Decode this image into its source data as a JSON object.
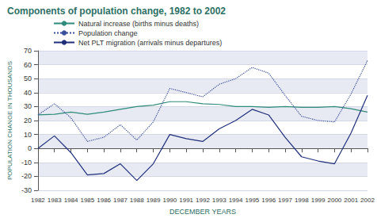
{
  "chart_data": {
    "type": "line",
    "title": "Components of population change, 1982 to 2002",
    "x_label": "DECEMBER YEARS",
    "y_label": "POPULATION CHANGE IN THOUSANDS",
    "categories": [
      "1982",
      "1983",
      "1984",
      "1985",
      "1986",
      "1987",
      "1988",
      "1989",
      "1990",
      "1991",
      "1992",
      "1993",
      "1994",
      "1995",
      "1996",
      "1997",
      "1998",
      "1999",
      "2000",
      "2001",
      "2002"
    ],
    "series": [
      {
        "name": "Natural increase (births minus deaths)",
        "color": "#2e8b7a",
        "line_style": "solid",
        "marker": "none",
        "values": [
          24,
          24.5,
          26,
          24.5,
          26,
          28,
          30,
          31,
          33.5,
          33.5,
          32,
          31.5,
          30,
          30,
          29.5,
          30,
          29.5,
          29.5,
          30,
          28.5,
          26
        ]
      },
      {
        "name": "Population change",
        "color": "#3a4f9a",
        "line_style": "dotted",
        "marker": "none",
        "values": [
          24,
          32,
          22,
          5,
          8,
          17,
          6,
          19,
          43,
          40,
          37,
          46,
          50,
          58,
          54,
          38,
          23,
          20,
          19,
          39,
          63
        ]
      },
      {
        "name": "Net PLT migration (arrivals minus departures)",
        "color": "#1f2f7a",
        "line_style": "solid",
        "marker": "none",
        "values": [
          0,
          9,
          -3,
          -19,
          -18,
          -11,
          -23,
          -11,
          10,
          7,
          5,
          14,
          20,
          28,
          24,
          8,
          -6,
          -9,
          -11,
          11,
          38
        ]
      }
    ],
    "ylim": [
      -30,
      70
    ],
    "yticks": [
      -30,
      -20,
      -10,
      0,
      10,
      20,
      30,
      40,
      50,
      60,
      70
    ],
    "grid": true,
    "legend": "top left"
  }
}
